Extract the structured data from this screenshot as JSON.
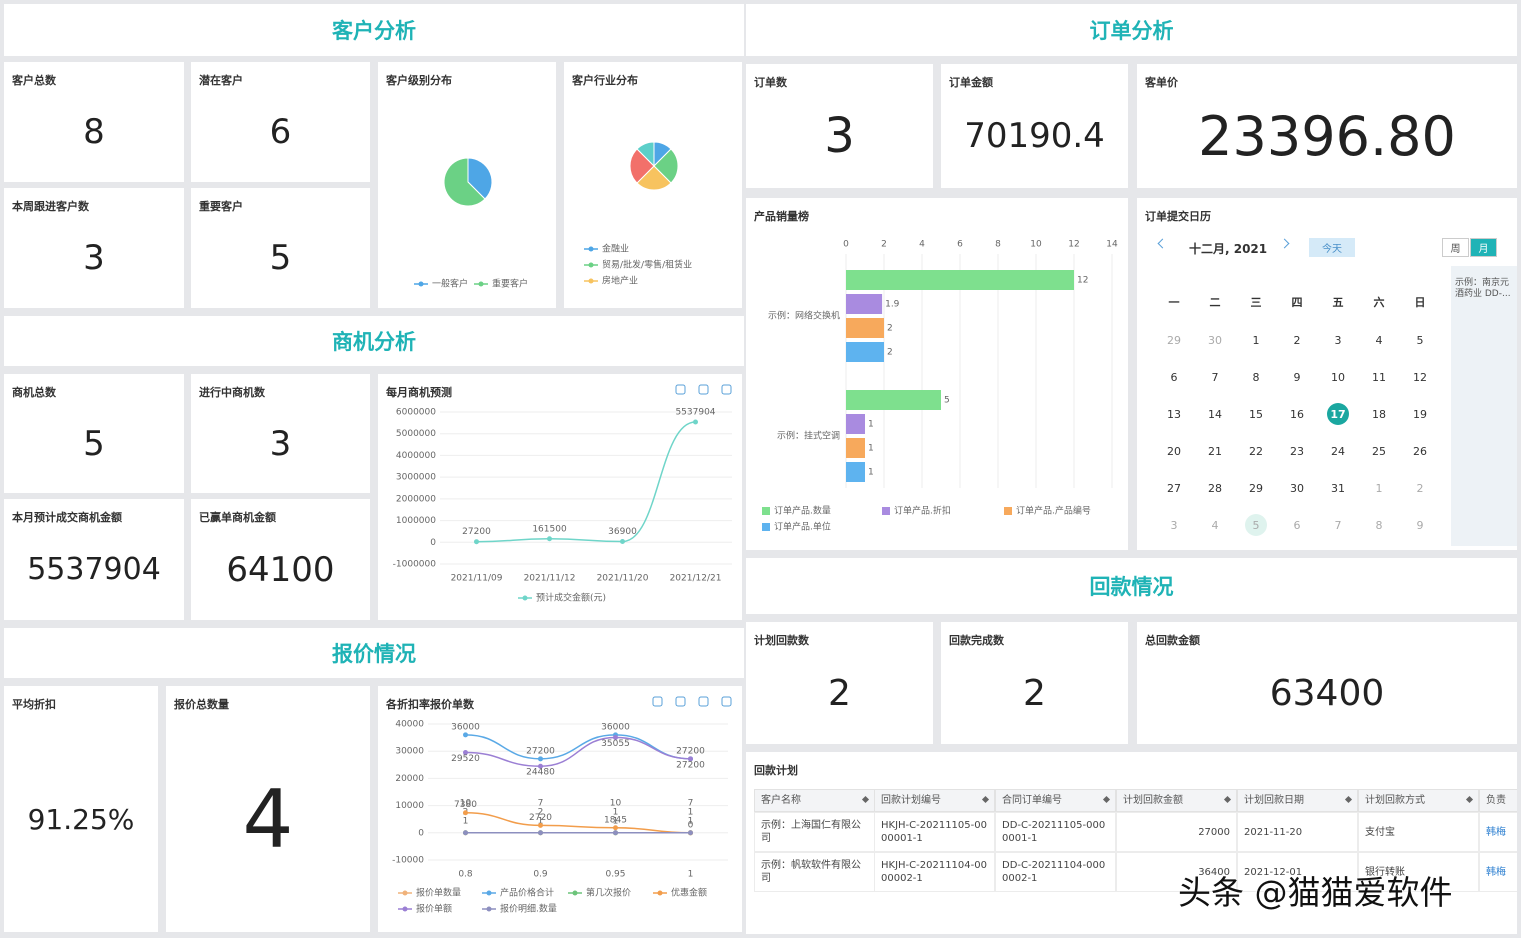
{
  "customer": {
    "title": "客户分析",
    "cards": [
      {
        "label": "客户总数",
        "value": "8"
      },
      {
        "label": "潜在客户",
        "value": "6"
      },
      {
        "label": "本周跟进客户数",
        "value": "3"
      },
      {
        "label": "重要客户",
        "value": "5"
      }
    ]
  },
  "opportunity": {
    "title": "商机分析",
    "cards": [
      {
        "label": "商机总数",
        "value": "5"
      },
      {
        "label": "进行中商机数",
        "value": "3"
      },
      {
        "label": "本月预计成交商机金额",
        "value": "5537904"
      },
      {
        "label": "已赢单商机金额",
        "value": "64100"
      }
    ]
  },
  "quote": {
    "title": "报价情况",
    "cards": [
      {
        "label": "平均折扣",
        "value": "91.25%"
      },
      {
        "label": "报价总数量",
        "value": "4"
      }
    ]
  },
  "order": {
    "title": "订单分析",
    "cards": [
      {
        "label": "订单数",
        "value": "3"
      },
      {
        "label": "订单金额",
        "value": "70190.4"
      },
      {
        "label": "客单价",
        "value": "23396.80"
      }
    ]
  },
  "payment": {
    "title": "回款情况",
    "cards": [
      {
        "label": "计划回款数",
        "value": "2"
      },
      {
        "label": "回款完成数",
        "value": "2"
      },
      {
        "label": "总回款金额",
        "value": "63400"
      }
    ]
  },
  "chart_data": [
    {
      "type": "pie",
      "title": "客户级别分布",
      "categories": [
        "一般客户",
        "重要客户"
      ],
      "values": [
        3,
        5
      ],
      "colors": [
        "#4ea6e6",
        "#6bd185"
      ]
    },
    {
      "type": "pie",
      "title": "客户行业分布",
      "categories": [
        "金融业",
        "贸易/批发/零售/租赁业",
        "房地产业",
        null,
        null
      ],
      "values": [
        1,
        2,
        2,
        2,
        1
      ],
      "colors": [
        "#4ea6e6",
        "#6bd185",
        "#f7c35f",
        "#f2706a",
        "#5ccfc9"
      ]
    },
    {
      "type": "line",
      "title": "每月商机预测",
      "categories": [
        "2021/11/09",
        "2021/11/12",
        "2021/11/20",
        "2021/12/21"
      ],
      "series": [
        {
          "name": "预计成交金额(元)",
          "color": "#6fd5c9",
          "values": [
            27200,
            161500,
            36900,
            5537904
          ]
        }
      ],
      "ylim": [
        -1000000,
        6000000
      ],
      "yticks": [
        -1000000,
        0,
        1000000,
        2000000,
        3000000,
        4000000,
        5000000,
        6000000
      ],
      "grid": true
    },
    {
      "type": "line",
      "title": "各折扣率报价单数",
      "categories": [
        "0.8",
        "0.9",
        "0.95",
        "1"
      ],
      "series": [
        {
          "name": "报价单数量",
          "color": "#f0b27a",
          "values": [
            1,
            1,
            1,
            1
          ]
        },
        {
          "name": "产品价格合计",
          "color": "#5aa9e6",
          "values": [
            36000,
            27200,
            36000,
            27200
          ]
        },
        {
          "name": "第几次报价",
          "color": "#6cc47a",
          "values": [
            2,
            2,
            1,
            1
          ]
        },
        {
          "name": "优惠金额",
          "color": "#f29d4b",
          "values": [
            7380,
            2720,
            1845,
            0
          ]
        },
        {
          "name": "报价单额",
          "color": "#9b7fd4",
          "values": [
            29520,
            24480,
            35055,
            27200
          ]
        },
        {
          "name": "报价明细.数量",
          "color": "#8d8fbf",
          "values": [
            10,
            7,
            10,
            7
          ]
        }
      ],
      "ylim": [
        -10000,
        40000
      ],
      "yticks": [
        -10000,
        0,
        10000,
        20000,
        30000,
        40000
      ],
      "grid": true
    },
    {
      "type": "hbar",
      "title": "产品销量榜",
      "categories": [
        "示例：网络交换机",
        "示例：挂式空调"
      ],
      "series": [
        {
          "name": "订单产品.数量",
          "color": "#7ee08e",
          "values": [
            12,
            5
          ]
        },
        {
          "name": "订单产品.折扣",
          "color": "#a98be0",
          "values": [
            1.9,
            1
          ]
        },
        {
          "name": "订单产品.产品编号",
          "color": "#f7a95c",
          "values": [
            2,
            1
          ]
        },
        {
          "name": "订单产品.单位",
          "color": "#5eb3ef",
          "values": [
            2,
            1
          ]
        }
      ],
      "xlim": [
        0,
        14
      ],
      "xticks": [
        0,
        2,
        4,
        6,
        8,
        10,
        12,
        14
      ],
      "grid": true
    }
  ],
  "calendar": {
    "title": "订单提交日历",
    "month": "十二月, 2021",
    "today_button": "今天",
    "views": [
      "周",
      "月"
    ],
    "weekdays": [
      "一",
      "二",
      "三",
      "四",
      "五",
      "六",
      "日"
    ],
    "days": [
      [
        29,
        30,
        1,
        2,
        3,
        4,
        5
      ],
      [
        6,
        7,
        8,
        9,
        10,
        11,
        12
      ],
      [
        13,
        14,
        15,
        16,
        17,
        18,
        19
      ],
      [
        20,
        21,
        22,
        23,
        24,
        25,
        26
      ],
      [
        27,
        28,
        29,
        30,
        31,
        1,
        2
      ],
      [
        3,
        4,
        5,
        6,
        7,
        8,
        9
      ]
    ],
    "event": "示例：南京元酒药业 DD-..."
  },
  "payment_plan": {
    "title": "回款计划",
    "columns": [
      "客户名称",
      "回款计划编号",
      "合同订单编号",
      "计划回款金额",
      "计划回款日期",
      "计划回款方式",
      "负责"
    ],
    "rows": [
      [
        "示例：上海国仁有限公司",
        "HKJH-C-20211105-0000001-1",
        "DD-C-20211105-0000001-1",
        "27000",
        "2021-11-20",
        "支付宝",
        "韩梅"
      ],
      [
        "示例：帆软软件有限公司",
        "HKJH-C-20211104-0000002-1",
        "DD-C-20211104-0000002-1",
        "36400",
        "2021-12-01",
        "银行转账",
        "韩梅"
      ]
    ]
  },
  "watermark": "头条 @猫猫爱软件"
}
